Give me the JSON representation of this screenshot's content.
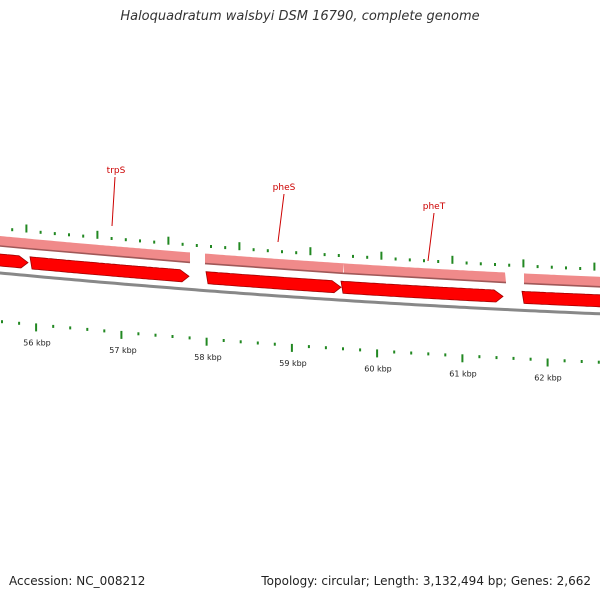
{
  "title": "Haloquadratum walsbyi DSM 16790, complete genome",
  "footer": {
    "accession": "Accession: NC_008212",
    "summary": "Topology: circular; Length: 3,132,494 bp; Genes: 2,662"
  },
  "colors": {
    "gene_outer": "#f08a8a",
    "gene_outer_edge": "#a05858",
    "cds_inner": "#ff0000",
    "cds_inner_edge": "#a00000",
    "backbone": "#888888",
    "ticks": "#228822",
    "gene_label": "#cc0000",
    "tick_label": "#222222"
  },
  "scale": {
    "unit": "kbp",
    "labels": [
      "56 kbp",
      "57 kbp",
      "58 kbp",
      "59 kbp",
      "60 kbp",
      "61 kbp",
      "62 kbp"
    ]
  },
  "gene_labels": [
    "trpS",
    "pheS",
    "pheT"
  ]
}
